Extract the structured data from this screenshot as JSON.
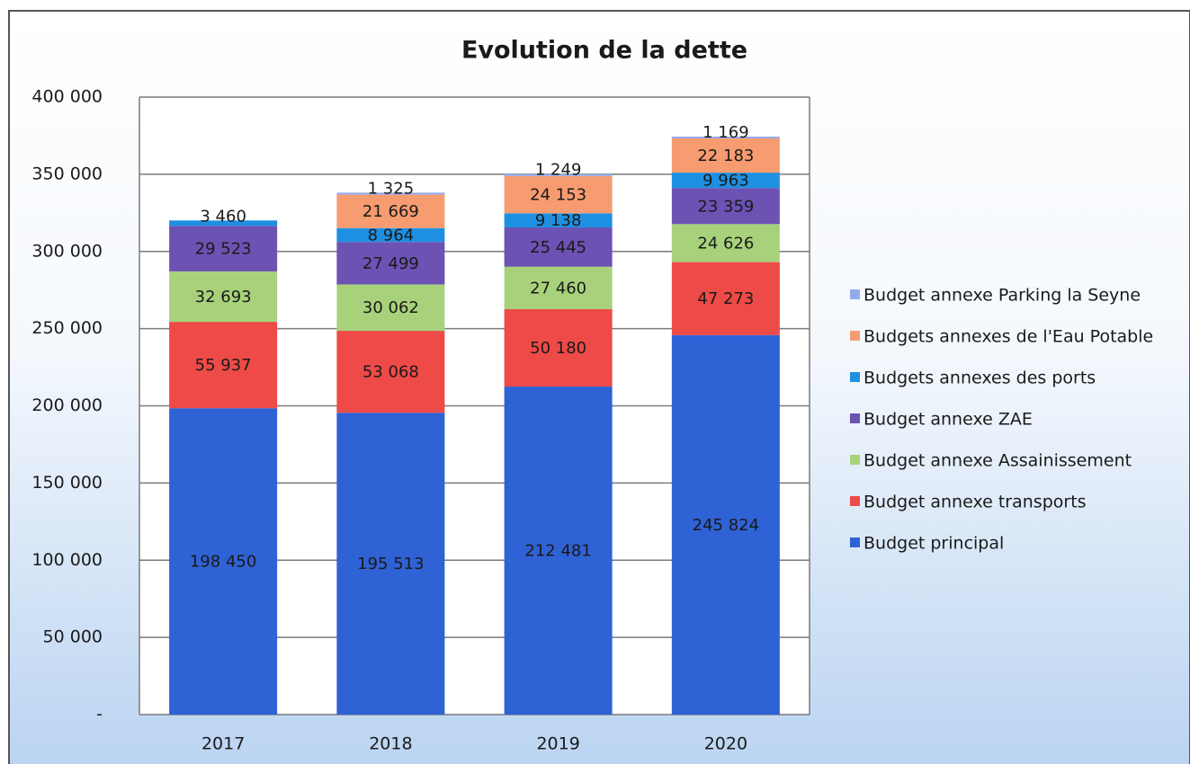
{
  "chart_data": {
    "type": "stacked_bar",
    "title": "Evolution de la dette",
    "categories": [
      "2017",
      "2018",
      "2019",
      "2020"
    ],
    "series": [
      {
        "name": "Budget principal",
        "color": "#2f62d4",
        "values": [
          198450,
          195513,
          212481,
          245824
        ],
        "value_labels": [
          "198 450",
          "195 513",
          "212 481",
          "245 824"
        ]
      },
      {
        "name": "Budget annexe transports",
        "color": "#ee4a47",
        "values": [
          55937,
          53068,
          50180,
          47273
        ],
        "value_labels": [
          "55 937",
          "53 068",
          "50 180",
          "47 273"
        ]
      },
      {
        "name": "Budget annexe Assainissement",
        "color": "#a7d27b",
        "values": [
          32693,
          30062,
          27460,
          24626
        ],
        "value_labels": [
          "32 693",
          "30 062",
          "27 460",
          "24 626"
        ]
      },
      {
        "name": "Budget annexe ZAE",
        "color": "#6b52b3",
        "values": [
          29523,
          27499,
          25445,
          23359
        ],
        "value_labels": [
          "29 523",
          "27 499",
          "25 445",
          "23 359"
        ]
      },
      {
        "name": "Budgets annexes des ports",
        "color": "#1e90e2",
        "values": [
          3460,
          8964,
          9138,
          9963
        ],
        "value_labels": [
          "3 460",
          "8 964",
          "9 138",
          "9 963"
        ]
      },
      {
        "name": "Budgets annexes de l'Eau Potable",
        "color": "#f79b70",
        "values": [
          null,
          21669,
          24153,
          22183
        ],
        "value_labels": [
          null,
          "21 669",
          "24 153",
          "22 183"
        ]
      },
      {
        "name": "Budget annexe Parking la Seyne",
        "color": "#94abeb",
        "values": [
          null,
          1325,
          1249,
          1169
        ],
        "value_labels": [
          null,
          "1 325",
          "1 249",
          "1 169"
        ]
      }
    ],
    "ylim": [
      0,
      400000
    ],
    "yticks": [
      {
        "value": 0,
        "label": "-"
      },
      {
        "value": 50000,
        "label": "50 000"
      },
      {
        "value": 100000,
        "label": "100 000"
      },
      {
        "value": 150000,
        "label": "150 000"
      },
      {
        "value": 200000,
        "label": "200 000"
      },
      {
        "value": 250000,
        "label": "250 000"
      },
      {
        "value": 300000,
        "label": "300 000"
      },
      {
        "value": 350000,
        "label": "350 000"
      },
      {
        "value": 400000,
        "label": "400 000"
      }
    ],
    "grid": true,
    "legend": "right"
  }
}
